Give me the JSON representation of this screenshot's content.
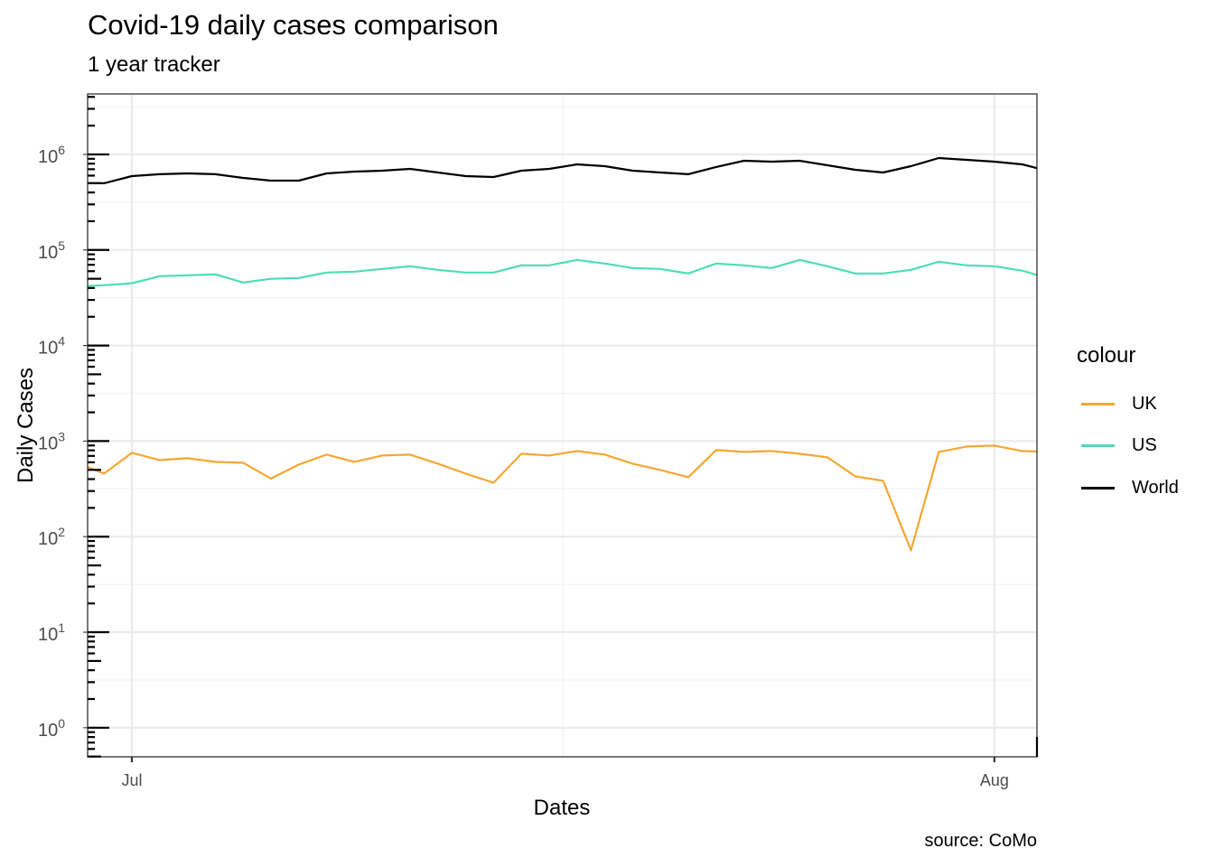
{
  "chart_data": {
    "type": "line",
    "title": "Covid-19 daily cases comparison",
    "subtitle": "1 year tracker",
    "caption": "source: CoMo",
    "xlabel": "Dates",
    "ylabel": "Daily Cases",
    "yscale": "log10",
    "ylim": [
      0.5,
      4300000
    ],
    "xlim": [
      "2020-06-29",
      "2020-08-02"
    ],
    "grid": true,
    "x_ticks": [
      {
        "date": "2020-07-01",
        "label": "Jul"
      },
      {
        "date": "2020-08-01",
        "label": "Aug"
      }
    ],
    "y_ticks": [
      {
        "exp": 0,
        "base": "10",
        "sup": "0"
      },
      {
        "exp": 1,
        "base": "10",
        "sup": "1"
      },
      {
        "exp": 2,
        "base": "10",
        "sup": "2"
      },
      {
        "exp": 3,
        "base": "10",
        "sup": "3"
      },
      {
        "exp": 4,
        "base": "10",
        "sup": "4"
      },
      {
        "exp": 5,
        "base": "10",
        "sup": "5"
      },
      {
        "exp": 6,
        "base": "10",
        "sup": "6"
      }
    ],
    "legend": {
      "title": "colour",
      "position": "right"
    },
    "x": [
      "2020-06-29",
      "2020-06-30",
      "2020-07-01",
      "2020-07-02",
      "2020-07-03",
      "2020-07-04",
      "2020-07-05",
      "2020-07-06",
      "2020-07-07",
      "2020-07-08",
      "2020-07-09",
      "2020-07-10",
      "2020-07-11",
      "2020-07-12",
      "2020-07-13",
      "2020-07-14",
      "2020-07-15",
      "2020-07-16",
      "2020-07-17",
      "2020-07-18",
      "2020-07-19",
      "2020-07-20",
      "2020-07-21",
      "2020-07-22",
      "2020-07-23",
      "2020-07-24",
      "2020-07-25",
      "2020-07-26",
      "2020-07-27",
      "2020-07-28",
      "2020-07-29",
      "2020-07-30",
      "2020-07-31",
      "2020-08-01",
      "2020-08-02",
      "2020-08-03"
    ],
    "series": [
      {
        "name": "UK",
        "color": "#F5A733",
        "values": [
          600,
          457,
          754,
          633,
          661,
          606,
          593,
          405,
          568,
          721,
          606,
          706,
          721,
          581,
          457,
          367,
          738,
          706,
          787,
          721,
          581,
          498,
          419,
          804,
          770,
          787,
          738,
          676,
          428,
          384,
          72,
          770,
          877,
          897,
          787,
          770
        ]
      },
      {
        "name": "US",
        "color": "#4DDDB5",
        "values": [
          41500,
          42800,
          44800,
          53200,
          54400,
          55600,
          45700,
          49900,
          50900,
          58000,
          59300,
          63300,
          67600,
          62000,
          58000,
          58000,
          69100,
          69100,
          78700,
          72100,
          64700,
          63300,
          56800,
          72100,
          69100,
          64700,
          78700,
          67600,
          56800,
          56800,
          62000,
          75400,
          69100,
          67600,
          60700,
          50000
        ]
      },
      {
        "name": "World",
        "color": "#000000",
        "values": [
          499000,
          499000,
          593000,
          620000,
          633000,
          620000,
          568000,
          532000,
          532000,
          633000,
          661000,
          676000,
          706000,
          647000,
          593000,
          580000,
          676000,
          706000,
          787000,
          754000,
          676000,
          647000,
          620000,
          738000,
          859000,
          840000,
          859000,
          770000,
          691000,
          647000,
          754000,
          917000,
          877000,
          840000,
          787000,
          662000
        ]
      }
    ]
  },
  "colors": {
    "panel_border": "#333333",
    "grid_major": "#EBEBEB",
    "grid_minor": "#F2F2F2",
    "axis_text": "#4D4D4D"
  }
}
